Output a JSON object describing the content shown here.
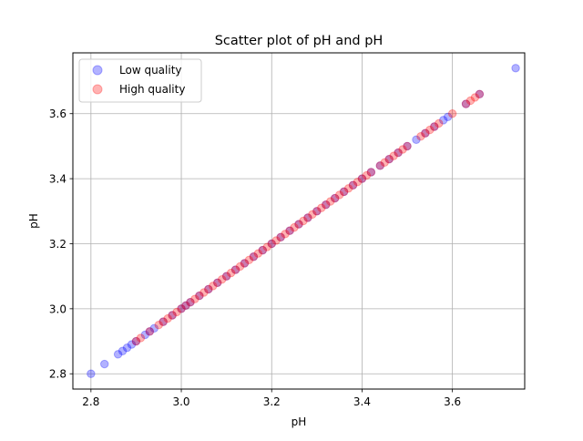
{
  "chart_data": {
    "type": "scatter",
    "title": "Scatter plot of pH and pH",
    "xlabel": "pH",
    "ylabel": "pH",
    "xlim": [
      2.76,
      3.76
    ],
    "ylim": [
      2.753,
      3.787
    ],
    "xticks": [
      2.8,
      3.0,
      3.2,
      3.4,
      3.6
    ],
    "xtick_labels": [
      "2.8",
      "3.0",
      "3.2",
      "3.4",
      "3.6"
    ],
    "yticks": [
      2.8,
      3.0,
      3.2,
      3.4,
      3.6
    ],
    "ytick_labels": [
      "2.8",
      "3.0",
      "3.2",
      "3.4",
      "3.6"
    ],
    "grid": true,
    "legend_position": "top-left",
    "series": [
      {
        "name": "Low quality",
        "color": "#0000ff",
        "alpha": 0.3,
        "x": [
          2.8,
          2.83,
          2.86,
          2.87,
          2.88,
          2.89,
          2.9,
          2.92,
          2.93,
          2.94,
          2.96,
          2.98,
          3.0,
          3.01,
          3.02,
          3.04,
          3.06,
          3.08,
          3.1,
          3.12,
          3.14,
          3.16,
          3.18,
          3.2,
          3.22,
          3.24,
          3.26,
          3.28,
          3.3,
          3.32,
          3.34,
          3.36,
          3.38,
          3.4,
          3.42,
          3.44,
          3.46,
          3.48,
          3.5,
          3.52,
          3.54,
          3.56,
          3.58,
          3.59,
          3.63,
          3.66,
          3.74
        ],
        "y": [
          2.8,
          2.83,
          2.86,
          2.87,
          2.88,
          2.89,
          2.9,
          2.92,
          2.93,
          2.94,
          2.96,
          2.98,
          3.0,
          3.01,
          3.02,
          3.04,
          3.06,
          3.08,
          3.1,
          3.12,
          3.14,
          3.16,
          3.18,
          3.2,
          3.22,
          3.24,
          3.26,
          3.28,
          3.3,
          3.32,
          3.34,
          3.36,
          3.38,
          3.4,
          3.42,
          3.44,
          3.46,
          3.48,
          3.5,
          3.52,
          3.54,
          3.56,
          3.58,
          3.59,
          3.63,
          3.66,
          3.74
        ]
      },
      {
        "name": "High quality",
        "color": "#ff0000",
        "alpha": 0.3,
        "x": [
          2.9,
          2.91,
          2.93,
          2.95,
          2.96,
          2.97,
          2.98,
          2.99,
          3.0,
          3.01,
          3.02,
          3.03,
          3.04,
          3.05,
          3.06,
          3.07,
          3.08,
          3.09,
          3.1,
          3.11,
          3.12,
          3.13,
          3.14,
          3.15,
          3.16,
          3.17,
          3.18,
          3.19,
          3.2,
          3.21,
          3.22,
          3.23,
          3.24,
          3.25,
          3.26,
          3.27,
          3.28,
          3.29,
          3.3,
          3.31,
          3.32,
          3.33,
          3.34,
          3.35,
          3.36,
          3.37,
          3.38,
          3.39,
          3.4,
          3.41,
          3.42,
          3.44,
          3.45,
          3.46,
          3.47,
          3.48,
          3.49,
          3.5,
          3.53,
          3.54,
          3.55,
          3.56,
          3.57,
          3.6,
          3.63,
          3.64,
          3.65,
          3.66
        ],
        "y": [
          2.9,
          2.91,
          2.93,
          2.95,
          2.96,
          2.97,
          2.98,
          2.99,
          3.0,
          3.01,
          3.02,
          3.03,
          3.04,
          3.05,
          3.06,
          3.07,
          3.08,
          3.09,
          3.1,
          3.11,
          3.12,
          3.13,
          3.14,
          3.15,
          3.16,
          3.17,
          3.18,
          3.19,
          3.2,
          3.21,
          3.22,
          3.23,
          3.24,
          3.25,
          3.26,
          3.27,
          3.28,
          3.29,
          3.3,
          3.31,
          3.32,
          3.33,
          3.34,
          3.35,
          3.36,
          3.37,
          3.38,
          3.39,
          3.4,
          3.41,
          3.42,
          3.44,
          3.45,
          3.46,
          3.47,
          3.48,
          3.49,
          3.5,
          3.53,
          3.54,
          3.55,
          3.56,
          3.57,
          3.6,
          3.63,
          3.64,
          3.65,
          3.66
        ]
      }
    ]
  }
}
